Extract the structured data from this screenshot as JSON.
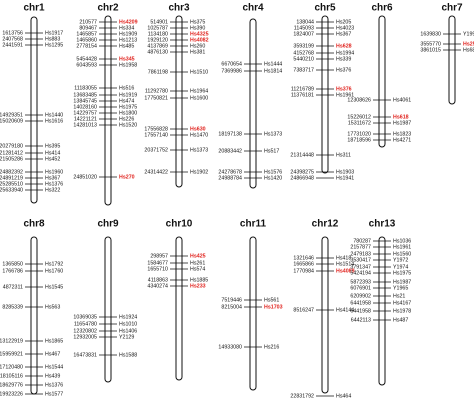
{
  "colors": {
    "marker": "#111111",
    "highlight": "#e0201b",
    "chromosome": "#111111"
  },
  "chromosomes": [
    {
      "name": "chr1",
      "markers": [
        {
          "pos": "1613756",
          "id": "Hs1917"
        },
        {
          "pos": "2407568",
          "id": "Hs883"
        },
        {
          "pos": "2441591",
          "id": "Hs1295"
        },
        {
          "pos": "14929351",
          "id": "Hs1440"
        },
        {
          "pos": "15020609",
          "id": "Hs1616"
        },
        {
          "pos": "20279180",
          "id": "Hs395"
        },
        {
          "pos": "21281412",
          "id": "Hs414"
        },
        {
          "pos": "21505286",
          "id": "Hs452"
        },
        {
          "pos": "24882392",
          "id": "Hs1960"
        },
        {
          "pos": "24891219",
          "id": "Hs367"
        },
        {
          "pos": "25285510",
          "id": "Hs1376"
        },
        {
          "pos": "25633940",
          "id": "Hs322"
        }
      ]
    },
    {
      "name": "chr2",
      "markers": [
        {
          "pos": "210577",
          "id": "Hs4209",
          "hl": true
        },
        {
          "pos": "809467",
          "id": "Hs334"
        },
        {
          "pos": "1465857",
          "id": "Hs1909"
        },
        {
          "pos": "1465860",
          "id": "Hs1213"
        },
        {
          "pos": "2778154",
          "id": "Hs485"
        },
        {
          "pos": "5454428",
          "id": "Hs345",
          "hl": true
        },
        {
          "pos": "6043593",
          "id": "Hs1958"
        },
        {
          "pos": "11183055",
          "id": "Hs516"
        },
        {
          "pos": "13683485",
          "id": "Hs1919"
        },
        {
          "pos": "13845745",
          "id": "Hs474"
        },
        {
          "pos": "14028160",
          "id": "Hs1975"
        },
        {
          "pos": "14229757",
          "id": "Hs1800"
        },
        {
          "pos": "14221121",
          "id": "Hs226"
        },
        {
          "pos": "14281013",
          "id": "Hs1520"
        },
        {
          "pos": "24851020",
          "id": "Hs270",
          "hl": true
        }
      ]
    },
    {
      "name": "chr3",
      "markers": [
        {
          "pos": "514901",
          "id": "Hs375"
        },
        {
          "pos": "1025787",
          "id": "Hs390"
        },
        {
          "pos": "1134180",
          "id": "Hs4325",
          "hl": true
        },
        {
          "pos": "1929120",
          "id": "Hs4082",
          "hl": true
        },
        {
          "pos": "4137869",
          "id": "Hs260"
        },
        {
          "pos": "4876130",
          "id": "Hs381"
        },
        {
          "pos": "7861198",
          "id": "Hs1510"
        },
        {
          "pos": "11292780",
          "id": "Hs1964"
        },
        {
          "pos": "17750821",
          "id": "Hs1600"
        },
        {
          "pos": "17556828",
          "id": "Hs630",
          "hl": true
        },
        {
          "pos": "17557140",
          "id": "Hs1470"
        },
        {
          "pos": "20371752",
          "id": "Hs1373"
        },
        {
          "pos": "24314422",
          "id": "Hs1902"
        }
      ]
    },
    {
      "name": "chr4",
      "markers": [
        {
          "pos": "6670654",
          "id": "Hs1444"
        },
        {
          "pos": "7369986",
          "id": "Hs1814"
        },
        {
          "pos": "18197138",
          "id": "Hs1373"
        },
        {
          "pos": "20883442",
          "id": "Hs517"
        },
        {
          "pos": "24278678",
          "id": "Hs1576"
        },
        {
          "pos": "24988784",
          "id": "Hs1420"
        }
      ]
    },
    {
      "name": "chr5",
      "markers": [
        {
          "pos": "138044",
          "id": "Hs205"
        },
        {
          "pos": "1145093",
          "id": "Hs4023"
        },
        {
          "pos": "1824007",
          "id": "Hs367"
        },
        {
          "pos": "3593199",
          "id": "Hs628",
          "hl": true
        },
        {
          "pos": "4152768",
          "id": "Hs1994"
        },
        {
          "pos": "5440210",
          "id": "Hs339"
        },
        {
          "pos": "7383717",
          "id": "Hs376"
        },
        {
          "pos": "11216789",
          "id": "Hs376",
          "hl": true
        },
        {
          "pos": "11376181",
          "id": "Hs1961"
        },
        {
          "pos": "21314448",
          "id": "Hs311"
        },
        {
          "pos": "24398275",
          "id": "Hs1903"
        },
        {
          "pos": "24866948",
          "id": "Hs1941"
        }
      ]
    },
    {
      "name": "chr6",
      "markers": [
        {
          "pos": "12308626",
          "id": "Hs4061"
        },
        {
          "pos": "15226012",
          "id": "Hs618",
          "hl": true
        },
        {
          "pos": "15311672",
          "id": "Hs1987"
        },
        {
          "pos": "17731020",
          "id": "Hs1823"
        },
        {
          "pos": "18718596",
          "id": "Hs4271"
        }
      ]
    },
    {
      "name": "chr7",
      "markers": [
        {
          "pos": "1639830",
          "id": "Y1999"
        },
        {
          "pos": "3555770",
          "id": "Hs250",
          "hl": true
        },
        {
          "pos": "3861015",
          "id": "Hs685"
        }
      ]
    },
    {
      "name": "chr8",
      "markers": [
        {
          "pos": "1365850",
          "id": "Hs1792"
        },
        {
          "pos": "1766786",
          "id": "Hs1760"
        },
        {
          "pos": "4872311",
          "id": "Hs1545"
        },
        {
          "pos": "8285339",
          "id": "Hs563"
        },
        {
          "pos": "13122919",
          "id": "Hs1865"
        },
        {
          "pos": "15959921",
          "id": "Hs467"
        },
        {
          "pos": "17120480",
          "id": "Hs1544"
        },
        {
          "pos": "18105116",
          "id": "Hs439"
        },
        {
          "pos": "18629776",
          "id": "Hs1376"
        },
        {
          "pos": "19923226",
          "id": "Hs1577"
        }
      ]
    },
    {
      "name": "chr9",
      "markers": [
        {
          "pos": "10369035",
          "id": "Hs1924"
        },
        {
          "pos": "11654780",
          "id": "Hs1010"
        },
        {
          "pos": "12320802",
          "id": "Hs1406"
        },
        {
          "pos": "12932005",
          "id": "Y2129"
        },
        {
          "pos": "16473831",
          "id": "Hs1588"
        }
      ]
    },
    {
      "name": "chr10",
      "markers": [
        {
          "pos": "298957",
          "id": "Hs425",
          "hl": true
        },
        {
          "pos": "1584677",
          "id": "Hs261"
        },
        {
          "pos": "1655710",
          "id": "Hs574"
        },
        {
          "pos": "4118863",
          "id": "Hs1885"
        },
        {
          "pos": "4340274",
          "id": "Hs233",
          "hl": true
        }
      ]
    },
    {
      "name": "chr11",
      "markers": [
        {
          "pos": "7519446",
          "id": "Hs561"
        },
        {
          "pos": "8215004",
          "id": "Hs1703",
          "hl": true
        },
        {
          "pos": "14933080",
          "id": "Hs216"
        }
      ]
    },
    {
      "name": "chr12",
      "markers": [
        {
          "pos": "1321646",
          "id": "Hs418"
        },
        {
          "pos": "1665866",
          "id": "Hs1514"
        },
        {
          "pos": "1770984",
          "id": "Hs4089",
          "hl": true
        },
        {
          "pos": "8516247",
          "id": "Hs4144"
        },
        {
          "pos": "22831792",
          "id": "Hs464"
        }
      ]
    },
    {
      "name": "chr13",
      "markers": [
        {
          "pos": "780287",
          "id": "Hs1036"
        },
        {
          "pos": "2157877",
          "id": "Hs1961"
        },
        {
          "pos": "2479183",
          "id": "Hs1560"
        },
        {
          "pos": "3530417",
          "id": "Y1972"
        },
        {
          "pos": "3791347",
          "id": "Y1974"
        },
        {
          "pos": "5424194",
          "id": "Hs1975"
        },
        {
          "pos": "5872393",
          "id": "Hs1987"
        },
        {
          "pos": "6076901",
          "id": "Y1965"
        },
        {
          "pos": "6209902",
          "id": "Hs21"
        },
        {
          "pos": "6441958",
          "id": "Hs4167"
        },
        {
          "pos": "6441958",
          "id": "Hs1978"
        },
        {
          "pos": "6442113",
          "id": "Hs487"
        }
      ]
    }
  ]
}
